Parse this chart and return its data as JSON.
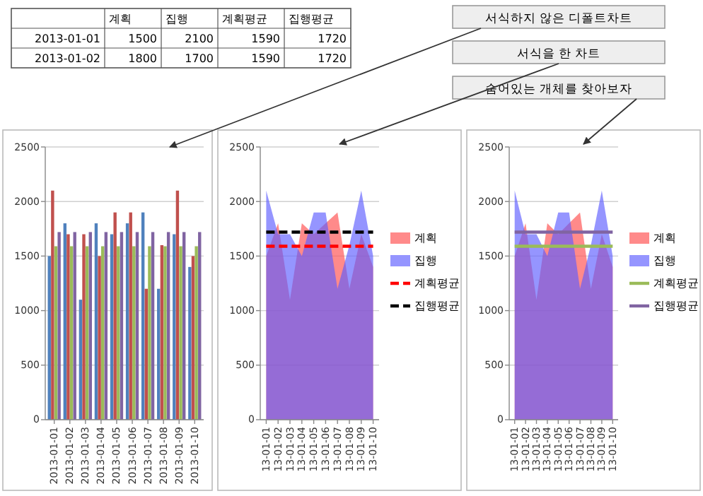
{
  "chart_data": [
    {
      "type": "heatmap",
      "data_labels": true,
      "categories": [
        "계획",
        "집행",
        "계획평균",
        "집행평균"
      ],
      "y_categories": [
        "2013-01-01",
        "2013-01-02"
      ],
      "cells": [
        [
          1500,
          2100,
          1590,
          1720
        ],
        [
          1800,
          1700,
          1590,
          1720
        ]
      ]
    },
    {
      "type": "other",
      "annotations": [
        "서식하지 않은 디폴트차트",
        "서식을 한 차트",
        "숨어있는 개체를 찾아보자"
      ]
    },
    {
      "type": "bar",
      "categories": [
        "2013-01-01",
        "2013-01-02",
        "2013-01-03",
        "2013-01-04",
        "2013-01-05",
        "2013-01-06",
        "2013-01-07",
        "2013-01-08",
        "2013-01-09",
        "2013-01-10"
      ],
      "ylim": [
        0,
        2500
      ],
      "yticks": [
        0,
        500,
        1000,
        1500,
        2000,
        2500
      ],
      "grid": "y",
      "legend": false,
      "series": [
        {
          "color": "#4f81bd",
          "values": [
            1500,
            1800,
            1100,
            1800,
            1700,
            1800,
            1900,
            1200,
            1700,
            1400
          ]
        },
        {
          "color": "#c0504d",
          "values": [
            2100,
            1700,
            1700,
            1500,
            1900,
            1900,
            1200,
            1600,
            2100,
            1500
          ]
        },
        {
          "color": "#9bbb59",
          "values": [
            1590,
            1590,
            1590,
            1590,
            1590,
            1590,
            1590,
            1590,
            1590,
            1590
          ]
        },
        {
          "color": "#8064a2",
          "values": [
            1720,
            1720,
            1720,
            1720,
            1720,
            1720,
            1720,
            1720,
            1720,
            1720
          ]
        }
      ]
    },
    {
      "type": "area",
      "categories": [
        "13-01-01",
        "13-01-02",
        "13-01-03",
        "13-01-04",
        "13-01-05",
        "13-01-06",
        "13-01-07",
        "13-01-08",
        "13-01-09",
        "13-01-10"
      ],
      "ylim": [
        0,
        2500
      ],
      "yticks": [
        0,
        500,
        1000,
        1500,
        2000,
        2500
      ],
      "grid": "y",
      "legend": "right",
      "series": [
        {
          "name": "계획",
          "color": "#ff4c4c",
          "values": [
            1500,
            1800,
            1100,
            1800,
            1700,
            1800,
            1900,
            1200,
            1700,
            1400
          ]
        },
        {
          "name": "집행",
          "color": "#5c5cff",
          "values": [
            2100,
            1700,
            1700,
            1500,
            1900,
            1900,
            1200,
            1600,
            2100,
            1500
          ]
        },
        {
          "name": "계획평균",
          "type": "line",
          "line_style": "dashed",
          "color": "#ff0000",
          "values": [
            1590,
            1590,
            1590,
            1590,
            1590,
            1590,
            1590,
            1590,
            1590,
            1590
          ]
        },
        {
          "name": "집행평균",
          "type": "line",
          "line_style": "dashed",
          "color": "#000000",
          "values": [
            1720,
            1720,
            1720,
            1720,
            1720,
            1720,
            1720,
            1720,
            1720,
            1720
          ]
        }
      ]
    },
    {
      "type": "area",
      "categories": [
        "13-01-01",
        "13-01-02",
        "13-01-03",
        "13-01-04",
        "13-01-05",
        "13-01-06",
        "13-01-07",
        "13-01-08",
        "13-01-09",
        "13-01-10"
      ],
      "ylim": [
        0,
        2500
      ],
      "yticks": [
        0,
        500,
        1000,
        1500,
        2000,
        2500
      ],
      "grid": "y",
      "legend": "right",
      "series": [
        {
          "name": "계획",
          "color": "#ff4c4c",
          "values": [
            1500,
            1800,
            1100,
            1800,
            1700,
            1800,
            1900,
            1200,
            1700,
            1400
          ]
        },
        {
          "name": "집행",
          "color": "#5c5cff",
          "values": [
            2100,
            1700,
            1700,
            1500,
            1900,
            1900,
            1200,
            1600,
            2100,
            1500
          ]
        },
        {
          "name": "계획평균",
          "type": "line",
          "line_style": "solid",
          "color": "#9bbb59",
          "values": [
            1590,
            1590,
            1590,
            1590,
            1590,
            1590,
            1590,
            1590,
            1590,
            1590
          ]
        },
        {
          "name": "집행평균",
          "type": "line",
          "line_style": "solid",
          "color": "#8064a2",
          "values": [
            1720,
            1720,
            1720,
            1720,
            1720,
            1720,
            1720,
            1720,
            1720,
            1720
          ]
        }
      ]
    }
  ]
}
